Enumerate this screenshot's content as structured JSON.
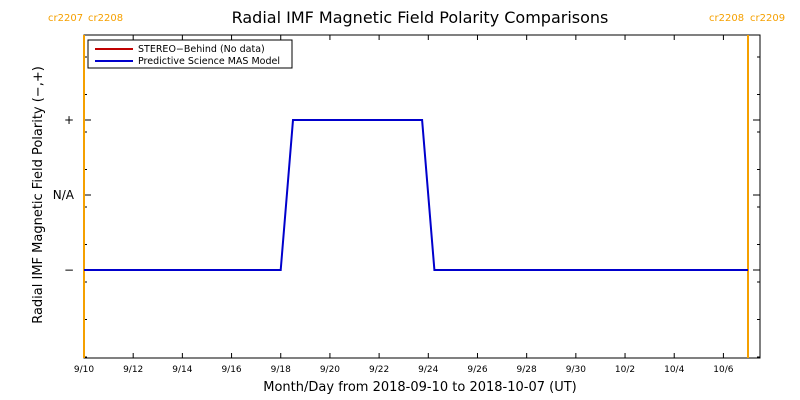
{
  "chart_data": {
    "type": "line",
    "title": "Radial IMF Magnetic Field Polarity Comparisons",
    "xlabel": "Month/Day from 2018-09-10 to 2018-10-07 (UT)",
    "ylabel": "Radial IMF Magnetic Field Polarity (−,+)",
    "xlim": [
      "2018-09-10",
      "2018-10-07"
    ],
    "x_ticks": [
      {
        "date": "2018-09-10",
        "label": "9/10"
      },
      {
        "date": "2018-09-12",
        "label": "9/12"
      },
      {
        "date": "2018-09-14",
        "label": "9/14"
      },
      {
        "date": "2018-09-16",
        "label": "9/16"
      },
      {
        "date": "2018-09-18",
        "label": "9/18"
      },
      {
        "date": "2018-09-20",
        "label": "9/20"
      },
      {
        "date": "2018-09-22",
        "label": "9/22"
      },
      {
        "date": "2018-09-24",
        "label": "9/24"
      },
      {
        "date": "2018-09-26",
        "label": "9/26"
      },
      {
        "date": "2018-09-28",
        "label": "9/28"
      },
      {
        "date": "2018-09-30",
        "label": "9/30"
      },
      {
        "date": "2018-10-02",
        "label": "10/2"
      },
      {
        "date": "2018-10-04",
        "label": "10/4"
      },
      {
        "date": "2018-10-06",
        "label": "10/6"
      }
    ],
    "y_levels": [
      {
        "value": 1,
        "label": "+"
      },
      {
        "value": 0,
        "label": "N/A"
      },
      {
        "value": -1,
        "label": "−"
      }
    ],
    "ylim": [
      -2,
      2
    ],
    "legend_position": "top-left",
    "series": [
      {
        "name": "STEREO−Behind (No data)",
        "color": "#c00000",
        "points": []
      },
      {
        "name": "Predictive Science MAS Model",
        "color": "#0000cc",
        "points": [
          {
            "x": "2018-09-10 00:00",
            "y": -1
          },
          {
            "x": "2018-09-18 00:00",
            "y": -1
          },
          {
            "x": "2018-09-18 12:00",
            "y": 1
          },
          {
            "x": "2018-09-23 18:00",
            "y": 1
          },
          {
            "x": "2018-09-24 06:00",
            "y": -1
          },
          {
            "x": "2018-10-07 00:00",
            "y": -1
          }
        ]
      }
    ],
    "carrington_markers": [
      {
        "date": "2018-09-10 00:00",
        "left_label": "cr2207",
        "right_label": "cr2208",
        "side": "left"
      },
      {
        "date": "2018-10-07 00:00",
        "left_label": "cr2208",
        "right_label": "cr2209",
        "side": "right"
      }
    ],
    "marker_color": "#f5a000"
  }
}
